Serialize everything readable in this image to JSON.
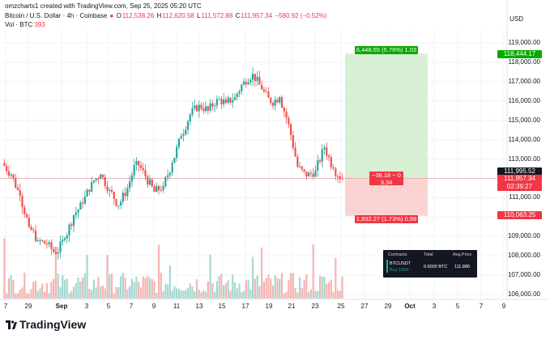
{
  "top_line": "omzcharts1 created with TradingView.com, Sep 25, 2025 05:20 UTC",
  "header": {
    "symbol": "Bitcoin / U.S. Dollar · 4h · Coinbase",
    "o_label": "O",
    "o_value": "112,538.26",
    "h_label": "H",
    "h_value": "112,620.58",
    "l_label": "L",
    "l_value": "111,572.88",
    "c_label": "C",
    "c_value": "111,957.34",
    "change": "−580.92 (−0.52%)"
  },
  "volume_label": {
    "name": "Vol · BTC",
    "value": "393"
  },
  "currency": "USD",
  "y_axis": [
    "119,000.00",
    "118,000.00",
    "117,000.00",
    "116,000.00",
    "115,000.00",
    "114,000.00",
    "113,000.00",
    "112,000.00",
    "111,000.00",
    "110,000.00",
    "109,000.00",
    "108,000.00",
    "107,000.00",
    "106,000.00"
  ],
  "x_axis": [
    {
      "label": "7",
      "bold": false
    },
    {
      "label": "29",
      "bold": false
    },
    {
      "label": "Sep",
      "bold": true
    },
    {
      "label": "3",
      "bold": false
    },
    {
      "label": "5",
      "bold": false
    },
    {
      "label": "7",
      "bold": false
    },
    {
      "label": "9",
      "bold": false
    },
    {
      "label": "11",
      "bold": false
    },
    {
      "label": "13",
      "bold": false
    },
    {
      "label": "15",
      "bold": false
    },
    {
      "label": "17",
      "bold": false
    },
    {
      "label": "19",
      "bold": false
    },
    {
      "label": "21",
      "bold": false
    },
    {
      "label": "23",
      "bold": false
    },
    {
      "label": "25",
      "bold": false
    },
    {
      "label": "27",
      "bold": false
    },
    {
      "label": "29",
      "bold": false
    },
    {
      "label": "Oct",
      "bold": true
    },
    {
      "label": "3",
      "bold": false
    },
    {
      "label": "5",
      "bold": false
    },
    {
      "label": "7",
      "bold": false
    },
    {
      "label": "9",
      "bold": false
    }
  ],
  "price_tags": {
    "target": "118,444.17",
    "entry": "111,995.52",
    "last": "111,957.34",
    "countdown": "02:39:27",
    "stop": "110,063.25"
  },
  "position": {
    "profit_label": "6,448.65 (5.76%) 1.03",
    "center_label_1": "−38.18 ~ 0",
    "center_label_2": "3.34",
    "loss_label": "1,932.27 (1.73%) 0.99"
  },
  "positions_table": {
    "headers": [
      "Contracts",
      "Total",
      "Avg.Price"
    ],
    "symbol": "BTCUSDT",
    "side": "Buy 150X",
    "total": "0.6000 BTC",
    "avg_price": "111,886"
  },
  "brand": "TradingView",
  "colors": {
    "up": "#26a69a",
    "down": "#ef5350",
    "profit_zone": "#d5efd0",
    "loss_zone": "#fdd3d3",
    "grid": "#f0f3fa"
  },
  "chart_data": {
    "type": "candlestick",
    "timeframe": "4h",
    "ylim": [
      106000,
      119500
    ],
    "candles_approx": [
      [
        112800,
        113600,
        112000,
        112200
      ],
      [
        112200,
        112400,
        110800,
        111100
      ],
      [
        111100,
        111600,
        109200,
        109500
      ],
      [
        109500,
        110200,
        108400,
        108800
      ],
      [
        108800,
        109400,
        107900,
        108600
      ],
      [
        108600,
        109000,
        107700,
        108100
      ],
      [
        108100,
        109200,
        107400,
        108900
      ],
      [
        108900,
        110300,
        108600,
        110100
      ],
      [
        110100,
        111200,
        109700,
        110700
      ],
      [
        110700,
        112100,
        110300,
        111800
      ],
      [
        111800,
        112700,
        111200,
        112200
      ],
      [
        112200,
        112600,
        111000,
        111400
      ],
      [
        111400,
        112000,
        110300,
        110600
      ],
      [
        110600,
        111700,
        110100,
        111500
      ],
      [
        111500,
        113100,
        111300,
        112900
      ],
      [
        112900,
        113300,
        111900,
        112100
      ],
      [
        112100,
        112300,
        111000,
        111300
      ],
      [
        111300,
        111800,
        110700,
        111600
      ],
      [
        111600,
        113100,
        111400,
        112800
      ],
      [
        112800,
        114500,
        112600,
        114200
      ],
      [
        114200,
        115600,
        113900,
        115300
      ],
      [
        115300,
        116200,
        114800,
        115800
      ],
      [
        115800,
        116700,
        115300,
        115500
      ],
      [
        115500,
        116400,
        114900,
        116100
      ],
      [
        116100,
        116700,
        115600,
        115900
      ],
      [
        115900,
        116400,
        115300,
        116200
      ],
      [
        116200,
        117300,
        115900,
        117000
      ],
      [
        117000,
        117800,
        116500,
        117400
      ],
      [
        117400,
        117900,
        116200,
        116600
      ],
      [
        116600,
        117000,
        115600,
        115900
      ],
      [
        115900,
        116400,
        115500,
        116200
      ],
      [
        116200,
        116300,
        114600,
        114800
      ],
      [
        114800,
        115000,
        112400,
        112600
      ],
      [
        112600,
        113200,
        111400,
        112100
      ],
      [
        112100,
        112900,
        111100,
        112400
      ],
      [
        112400,
        113800,
        111900,
        113600
      ],
      [
        113600,
        114100,
        112200,
        112500
      ],
      [
        112500,
        112600,
        111570,
        111957
      ]
    ]
  }
}
